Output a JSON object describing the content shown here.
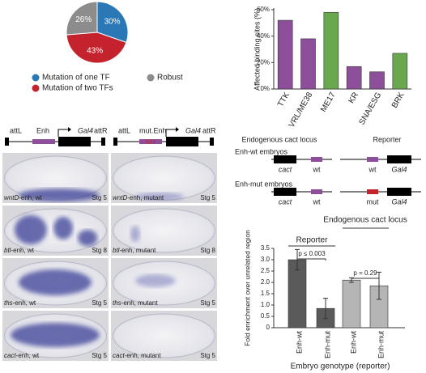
{
  "chart_data": [
    {
      "type": "pie",
      "categories": [
        "Mutation of one TF",
        "Mutation of two TFs",
        "Robust"
      ],
      "values": [
        30,
        43,
        26
      ],
      "value_labels": [
        "30%",
        "43%",
        "26%"
      ],
      "colors": [
        "#2b78b6",
        "#c4222c",
        "#8c8c8c"
      ]
    },
    {
      "type": "bar",
      "ylabel": "Affected binding sites (%)",
      "categories": [
        "TTK",
        "VRL/ME38",
        "ME17",
        "KR",
        "SNA/ESG",
        "BRK"
      ],
      "values": [
        52,
        38,
        58,
        17,
        13,
        27
      ],
      "colors": [
        "#8e4f9a",
        "#8e4f9a",
        "#6aa84f",
        "#8e4f9a",
        "#8e4f9a",
        "#6aa84f"
      ],
      "ylim": [
        0,
        60
      ],
      "yticks": [
        {
          "value": 0,
          "label": "0%"
        },
        {
          "value": 20,
          "label": "20%"
        },
        {
          "value": 40,
          "label": "40%"
        },
        {
          "value": 60,
          "label": "60%"
        }
      ]
    },
    {
      "type": "errorbar",
      "ylabel": "Fold enrichment over unrelated region",
      "xlabel": "Embryo genotype (reporter)",
      "categories": [
        "Enh-wt",
        "Enh-mut",
        "Enh-wt",
        "Enh-mut"
      ],
      "values": [
        3.0,
        0.85,
        2.1,
        1.85
      ],
      "errors": [
        0.45,
        0.45,
        0.1,
        0.6
      ],
      "colors": [
        "#5a5a5a",
        "#5a5a5a",
        "#b5b5b5",
        "#b5b5b5"
      ],
      "ylim": [
        0,
        3.5
      ],
      "yticks": [
        0,
        0.5,
        {
          "value": 1,
          "label": "1.0"
        },
        1.5,
        {
          "value": 2,
          "label": "2.0"
        },
        2.5,
        {
          "value": 3,
          "label": "3.0"
        },
        3.5
      ],
      "groups": [
        "Reporter",
        "Endogenous cact locus"
      ],
      "annotations": [
        "p ≤ 0.003",
        "p = 0.29"
      ]
    }
  ],
  "constructs": {
    "wt": [
      "attL",
      "Enh",
      "Gal4",
      "attR"
    ],
    "mut": [
      "attL",
      "mut.Enh",
      "Gal4",
      "attR"
    ]
  },
  "reporter_diagram": {
    "headers": [
      "Endogenous cact locus",
      "Reporter"
    ],
    "rows": [
      {
        "name": "Enh-wt embryos",
        "labels": [
          "cact",
          "wt",
          "wt",
          "Gal4"
        ]
      },
      {
        "name": "Enh-mut embryos",
        "labels": [
          "cact",
          "wt",
          "mut",
          "Gal4"
        ]
      }
    ]
  },
  "embryos": [
    {
      "gene": "wntD",
      "suffix": "-enh, wt",
      "stage": "Stg 5"
    },
    {
      "gene": "wntD",
      "suffix": "-enh, mutant",
      "stage": "Stg 5"
    },
    {
      "gene": "btl",
      "suffix": "-enh, wt",
      "stage": "Stg 8"
    },
    {
      "gene": "btl",
      "suffix": "-enh, mutant",
      "stage": "Stg 8"
    },
    {
      "gene": "ths",
      "suffix": "-enh, wt",
      "stage": "Stg 5"
    },
    {
      "gene": "ths",
      "suffix": "-enh, mutant",
      "stage": "Stg 5"
    },
    {
      "gene": "cact",
      "suffix": "-enh, wt",
      "stage": "Stg 5"
    },
    {
      "gene": "cact",
      "suffix": "-enh, mutant",
      "stage": "Stg 5"
    }
  ]
}
